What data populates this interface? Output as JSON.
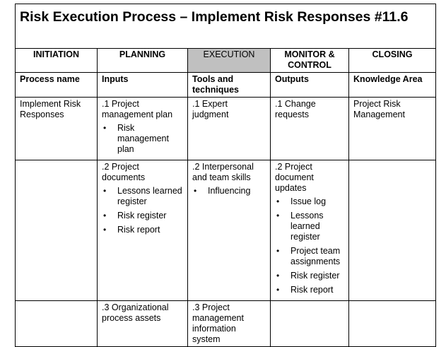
{
  "title": "Risk Execution Process – Implement Risk Responses #11.6",
  "phases": [
    "INITIATION",
    "PLANNING",
    "EXECUTION",
    "MONITOR & CONTROL",
    "CLOSING"
  ],
  "headers": {
    "process": "Process name",
    "inputs": "Inputs",
    "tools": "Tools and techniques",
    "outputs": "Outputs",
    "knowledge": "Knowledge Area"
  },
  "rows": [
    {
      "process": "Implement Risk Responses",
      "input": ".1 Project management plan",
      "input_items": [
        "Risk management plan"
      ],
      "tool": ".1 Expert judgment",
      "output": ".1 Change requests",
      "knowledge": "Project Risk Management"
    },
    {
      "input": ".2 Project documents",
      "input_items": [
        "Lessons learned register",
        "Risk register",
        "Risk report"
      ],
      "tool": ".2 Interpersonal and team skills",
      "tool_items": [
        "Influencing"
      ],
      "output": ".2 Project document updates",
      "output_items": [
        "Issue log",
        "Lessons learned register",
        "Project team assignments",
        "Risk register",
        "Risk report"
      ]
    },
    {
      "input": ".3 Organizational process assets",
      "tool": ".3 Project management information system"
    }
  ]
}
